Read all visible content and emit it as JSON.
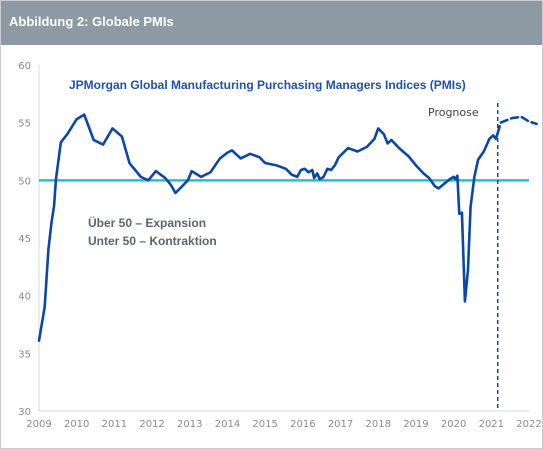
{
  "header": {
    "title": "Abbildung 2: Globale PMIs"
  },
  "colors": {
    "header_bg": "#8e9aa3",
    "series": "#0b47a8",
    "threshold": "#22c0d0",
    "title": "#1f4fb4",
    "note": "#5b6570"
  },
  "chart_data": {
    "type": "line",
    "title": "JPMorgan Global Manufacturing Purchasing Managers Indices (PMIs)",
    "xlabel": "",
    "ylabel": "",
    "xlim": [
      2009,
      2022
    ],
    "ylim": [
      30,
      60
    ],
    "x_ticks": [
      "2009",
      "2010",
      "2011",
      "2012",
      "2013",
      "2014",
      "2015",
      "2016",
      "2017",
      "2018",
      "2019",
      "2020",
      "2021",
      "2022"
    ],
    "y_ticks": [
      "30",
      "35",
      "40",
      "45",
      "50",
      "55",
      "60"
    ],
    "threshold": {
      "value": 50
    },
    "forecast_start": 2021.17,
    "forecast_label": "Prognose",
    "notes": [
      "Über 50 – Expansion",
      "Unter 50 – Kontraktion"
    ],
    "grid": false,
    "legend": "none",
    "series": [
      {
        "style": "solid",
        "points": [
          [
            2009.0,
            36.1
          ],
          [
            2009.15,
            39.0
          ],
          [
            2009.2,
            41.5
          ],
          [
            2009.25,
            44.0
          ],
          [
            2009.33,
            46.3
          ],
          [
            2009.4,
            47.8
          ],
          [
            2009.45,
            50.1
          ],
          [
            2009.58,
            53.3
          ],
          [
            2009.75,
            54.0
          ],
          [
            2010.0,
            55.3
          ],
          [
            2010.2,
            55.7
          ],
          [
            2010.45,
            53.5
          ],
          [
            2010.7,
            53.1
          ],
          [
            2010.95,
            54.5
          ],
          [
            2011.2,
            53.8
          ],
          [
            2011.4,
            51.5
          ],
          [
            2011.7,
            50.3
          ],
          [
            2011.9,
            50.0
          ],
          [
            2012.1,
            50.8
          ],
          [
            2012.35,
            50.2
          ],
          [
            2012.5,
            49.6
          ],
          [
            2012.62,
            48.9
          ],
          [
            2012.8,
            49.5
          ],
          [
            2012.95,
            50.0
          ],
          [
            2013.05,
            50.8
          ],
          [
            2013.3,
            50.3
          ],
          [
            2013.55,
            50.7
          ],
          [
            2013.8,
            51.9
          ],
          [
            2014.0,
            52.4
          ],
          [
            2014.12,
            52.6
          ],
          [
            2014.35,
            51.9
          ],
          [
            2014.6,
            52.3
          ],
          [
            2014.85,
            52.0
          ],
          [
            2015.0,
            51.5
          ],
          [
            2015.3,
            51.3
          ],
          [
            2015.55,
            51.0
          ],
          [
            2015.7,
            50.5
          ],
          [
            2015.85,
            50.3
          ],
          [
            2015.95,
            50.9
          ],
          [
            2016.05,
            51.0
          ],
          [
            2016.15,
            50.7
          ],
          [
            2016.25,
            50.9
          ],
          [
            2016.3,
            50.2
          ],
          [
            2016.38,
            50.6
          ],
          [
            2016.45,
            50.1
          ],
          [
            2016.55,
            50.3
          ],
          [
            2016.65,
            51.0
          ],
          [
            2016.75,
            50.9
          ],
          [
            2016.85,
            51.3
          ],
          [
            2016.95,
            52.0
          ],
          [
            2017.2,
            52.8
          ],
          [
            2017.45,
            52.5
          ],
          [
            2017.7,
            52.9
          ],
          [
            2017.9,
            53.6
          ],
          [
            2018.0,
            54.5
          ],
          [
            2018.15,
            54.0
          ],
          [
            2018.25,
            53.2
          ],
          [
            2018.35,
            53.5
          ],
          [
            2018.55,
            52.8
          ],
          [
            2018.8,
            52.1
          ],
          [
            2019.0,
            51.3
          ],
          [
            2019.2,
            50.6
          ],
          [
            2019.35,
            50.2
          ],
          [
            2019.5,
            49.5
          ],
          [
            2019.6,
            49.3
          ],
          [
            2019.75,
            49.7
          ],
          [
            2019.9,
            50.1
          ],
          [
            2020.0,
            50.3
          ],
          [
            2020.05,
            50.1
          ],
          [
            2020.1,
            50.4
          ],
          [
            2020.15,
            47.1
          ],
          [
            2020.22,
            47.2
          ],
          [
            2020.3,
            39.5
          ],
          [
            2020.38,
            42.2
          ],
          [
            2020.45,
            47.7
          ],
          [
            2020.55,
            50.3
          ],
          [
            2020.65,
            51.8
          ],
          [
            2020.8,
            52.5
          ],
          [
            2020.95,
            53.6
          ],
          [
            2021.05,
            53.9
          ],
          [
            2021.12,
            53.6
          ],
          [
            2021.17,
            54.1
          ]
        ]
      },
      {
        "style": "dashed",
        "points": [
          [
            2021.17,
            54.1
          ],
          [
            2021.25,
            55.0
          ],
          [
            2021.55,
            55.4
          ],
          [
            2021.8,
            55.5
          ],
          [
            2022.0,
            55.1
          ],
          [
            2022.2,
            54.9
          ]
        ]
      }
    ]
  }
}
